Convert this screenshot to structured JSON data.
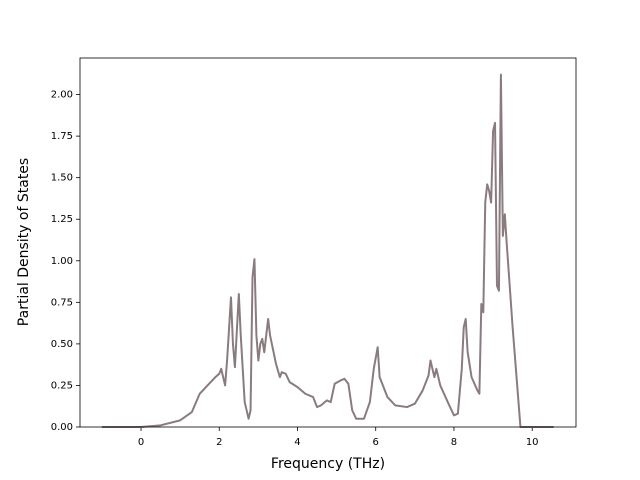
{
  "chart_data": {
    "type": "line",
    "x_label": "Frequency (THz)",
    "y_label": "Partial Density of States",
    "xlim": [
      -1.56,
      11.12
    ],
    "ylim": [
      0,
      2.22
    ],
    "xticks": [
      0,
      2,
      4,
      6,
      8,
      10
    ],
    "yticks": [
      {
        "value": 0,
        "label": "0.00"
      },
      {
        "value": 0.25,
        "label": "0.25"
      },
      {
        "value": 0.5,
        "label": "0.50"
      },
      {
        "value": 0.75,
        "label": "0.75"
      },
      {
        "value": 1,
        "label": "1.00"
      },
      {
        "value": 1.25,
        "label": "1.25"
      },
      {
        "value": 1.5,
        "label": "1.50"
      },
      {
        "value": 1.75,
        "label": "1.75"
      },
      {
        "value": 2,
        "label": "2.00"
      }
    ],
    "x": [
      -1.0,
      0,
      0.5,
      1.0,
      1.3,
      1.5,
      1.7,
      1.9,
      2.0,
      2.05,
      2.15,
      2.2,
      2.3,
      2.35,
      2.4,
      2.5,
      2.55,
      2.65,
      2.75,
      2.8,
      2.85,
      2.9,
      2.95,
      3.0,
      3.05,
      3.1,
      3.15,
      3.25,
      3.3,
      3.45,
      3.55,
      3.6,
      3.7,
      3.8,
      4.0,
      4.2,
      4.4,
      4.5,
      4.6,
      4.75,
      4.85,
      4.95,
      5.1,
      5.2,
      5.3,
      5.4,
      5.5,
      5.7,
      5.85,
      5.95,
      6.05,
      6.1,
      6.3,
      6.5,
      6.8,
      7.0,
      7.2,
      7.35,
      7.4,
      7.5,
      7.55,
      7.65,
      7.9,
      8.0,
      8.1,
      8.2,
      8.25,
      8.3,
      8.35,
      8.45,
      8.6,
      8.65,
      8.7,
      8.75,
      8.8,
      8.85,
      8.9,
      8.95,
      9.0,
      9.05,
      9.1,
      9.15,
      9.2,
      9.25,
      9.3,
      9.35,
      9.5,
      9.6,
      9.7,
      10.55
    ],
    "series": [
      {
        "color": "#8a7b7e",
        "values": [
          0,
          0,
          0.01,
          0.04,
          0.09,
          0.2,
          0.25,
          0.3,
          0.32,
          0.35,
          0.25,
          0.4,
          0.78,
          0.5,
          0.36,
          0.8,
          0.55,
          0.15,
          0.05,
          0.1,
          0.9,
          1.01,
          0.55,
          0.4,
          0.5,
          0.53,
          0.45,
          0.65,
          0.55,
          0.38,
          0.3,
          0.33,
          0.32,
          0.27,
          0.24,
          0.2,
          0.18,
          0.12,
          0.13,
          0.16,
          0.15,
          0.26,
          0.28,
          0.29,
          0.26,
          0.1,
          0.05,
          0.05,
          0.15,
          0.35,
          0.48,
          0.3,
          0.18,
          0.13,
          0.12,
          0.14,
          0.22,
          0.31,
          0.4,
          0.3,
          0.35,
          0.25,
          0.12,
          0.07,
          0.08,
          0.35,
          0.6,
          0.65,
          0.45,
          0.3,
          0.22,
          0.2,
          0.74,
          0.69,
          1.35,
          1.46,
          1.42,
          1.35,
          1.78,
          1.83,
          0.85,
          0.82,
          2.12,
          1.15,
          1.28,
          1.1,
          0.6,
          0.3,
          0,
          0
        ]
      }
    ]
  }
}
